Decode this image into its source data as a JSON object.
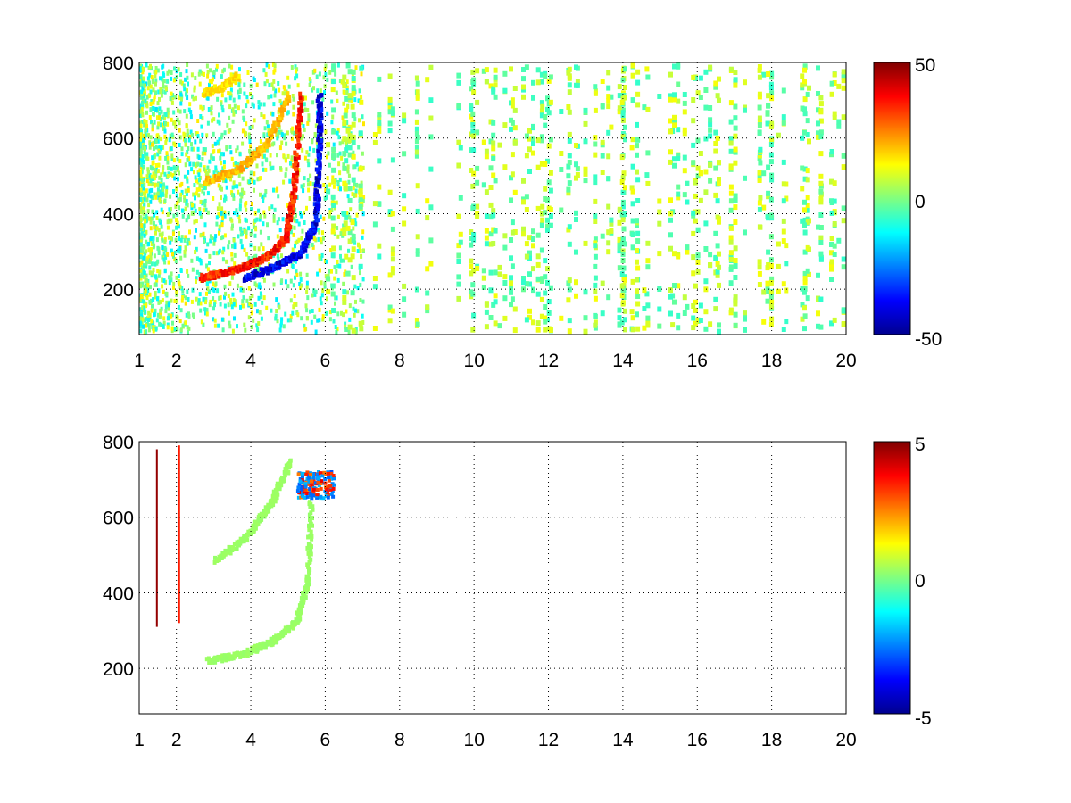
{
  "chart_data": [
    {
      "type": "heatmap",
      "title": "",
      "xlabel": "",
      "ylabel": "",
      "xlim": [
        1,
        20
      ],
      "ylim": [
        80,
        800
      ],
      "xticks": [
        "1",
        "2",
        "4",
        "6",
        "8",
        "10",
        "12",
        "14",
        "16",
        "18",
        "20"
      ],
      "yticks": [
        "200",
        "400",
        "600",
        "800"
      ],
      "grid": true,
      "colormap": "jet",
      "clim": [
        -50,
        50
      ],
      "colorbar_ticks": [
        "50",
        "0",
        "-50"
      ],
      "features": [
        {
          "kind": "curve",
          "value": 40,
          "points": [
            [
              2.6,
              235
            ],
            [
              3.5,
              255
            ],
            [
              4.4,
              290
            ],
            [
              4.9,
              340
            ],
            [
              5.1,
              450
            ],
            [
              5.3,
              720
            ]
          ]
        },
        {
          "kind": "curve",
          "value": -45,
          "points": [
            [
              3.8,
              235
            ],
            [
              4.6,
              265
            ],
            [
              5.3,
              300
            ],
            [
              5.7,
              380
            ],
            [
              5.8,
              560
            ],
            [
              5.8,
              720
            ]
          ]
        },
        {
          "kind": "curve",
          "value": 22,
          "points": [
            [
              2.7,
              490
            ],
            [
              3.6,
              520
            ],
            [
              4.4,
              590
            ],
            [
              5.0,
              720
            ]
          ]
        },
        {
          "kind": "curve",
          "value": 18,
          "points": [
            [
              2.7,
              725
            ],
            [
              3.2,
              740
            ],
            [
              3.6,
              770
            ]
          ]
        }
      ],
      "scatter_noise_level": [
        -15,
        15
      ]
    },
    {
      "type": "heatmap",
      "title": "",
      "xlabel": "",
      "ylabel": "",
      "xlim": [
        1,
        20
      ],
      "ylim": [
        80,
        800
      ],
      "xticks": [
        "1",
        "2",
        "4",
        "6",
        "8",
        "10",
        "12",
        "14",
        "16",
        "18",
        "20"
      ],
      "yticks": [
        "200",
        "400",
        "600",
        "800"
      ],
      "grid": true,
      "colormap": "jet",
      "clim": [
        -5,
        5
      ],
      "colorbar_ticks": [
        "5",
        "0",
        "-5"
      ],
      "features": [
        {
          "kind": "curve",
          "value": 0.3,
          "points": [
            [
              2.8,
              225
            ],
            [
              3.8,
              245
            ],
            [
              4.6,
              280
            ],
            [
              5.2,
              330
            ],
            [
              5.5,
              440
            ],
            [
              5.6,
              720
            ]
          ]
        },
        {
          "kind": "curve",
          "value": 0.3,
          "points": [
            [
              3.0,
              490
            ],
            [
              3.8,
              550
            ],
            [
              4.5,
              640
            ],
            [
              5.0,
              750
            ]
          ]
        },
        {
          "kind": "cluster",
          "value": -3,
          "center": [
            5.7,
            690
          ],
          "spread": [
            0.5,
            35
          ]
        },
        {
          "kind": "vline",
          "value": 4.8,
          "x": 1.45,
          "y": [
            310,
            780
          ]
        },
        {
          "kind": "vline",
          "value": 3.5,
          "x": 2.05,
          "y": [
            320,
            790
          ]
        }
      ]
    }
  ]
}
